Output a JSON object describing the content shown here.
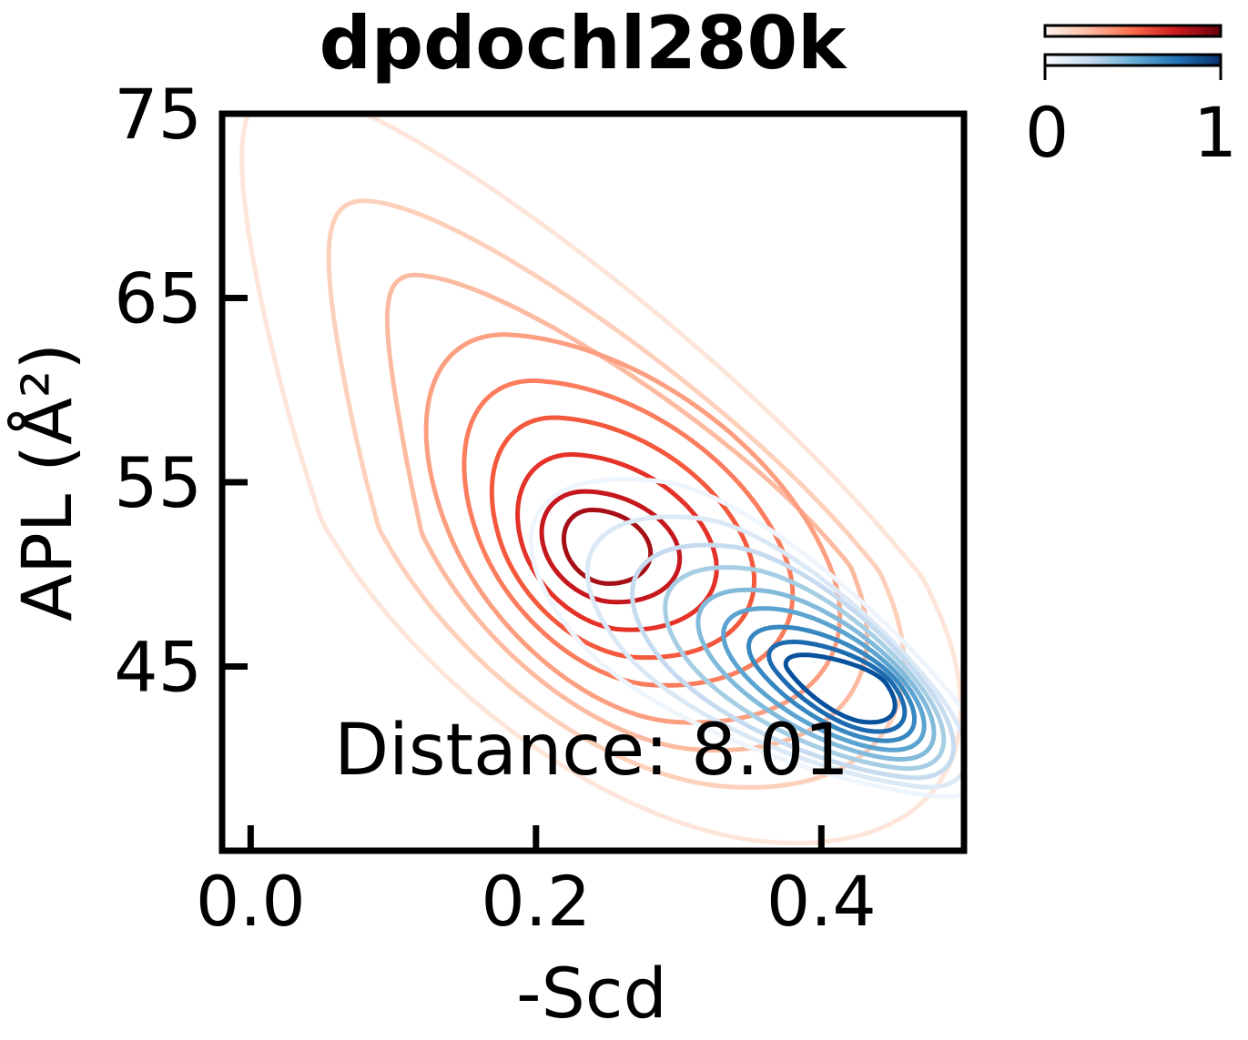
{
  "chart_data": {
    "type": "contour",
    "title": "dpdochl280k",
    "xlabel": "-Scd",
    "ylabel": "APL (Å²)",
    "xlim": [
      -0.02,
      0.5
    ],
    "ylim": [
      35,
      75
    ],
    "xticks": [
      "0.0",
      "0.2",
      "0.4"
    ],
    "xtick_values": [
      0.0,
      0.2,
      0.4
    ],
    "yticks": [
      "75",
      "65",
      "55",
      "45"
    ],
    "ytick_values": [
      75,
      65,
      55,
      45
    ],
    "annotation": "Distance: 8.01",
    "grid": false,
    "series": [
      {
        "colormap": "Reds",
        "center": {
          "x": 0.245,
          "y": 51.5
        },
        "levels": [
          {
            "dx_minus": 0.195,
            "dx_plus": 0.225,
            "dy_up": 24.5,
            "dy_down": 16.0,
            "tilt": 0.6,
            "color": "#fee5d9",
            "shape": "tear"
          },
          {
            "dx_minus": 0.155,
            "dx_plus": 0.195,
            "dy_up": 18.5,
            "dy_down": 13.0,
            "tilt": 0.55,
            "color": "#fdd0bb",
            "shape": "tear"
          },
          {
            "dx_minus": 0.125,
            "dx_plus": 0.175,
            "dy_up": 14.5,
            "dy_down": 11.0,
            "tilt": 0.5,
            "color": "#fcbba1",
            "shape": "tear"
          },
          {
            "dx_minus": 0.105,
            "dx_plus": 0.16,
            "dy_up": 11.5,
            "dy_down": 9.5,
            "tilt": 0.45,
            "color": "#fc9f81",
            "shape": "ellipse"
          },
          {
            "dx_minus": 0.085,
            "dx_plus": 0.13,
            "dy_up": 9.0,
            "dy_down": 7.5,
            "tilt": 0.4,
            "color": "#fb7d5d",
            "shape": "ellipse"
          },
          {
            "dx_minus": 0.07,
            "dx_plus": 0.105,
            "dy_up": 7.0,
            "dy_down": 6.0,
            "tilt": 0.35,
            "color": "#f4593d",
            "shape": "ellipse"
          },
          {
            "dx_minus": 0.055,
            "dx_plus": 0.08,
            "dy_up": 5.0,
            "dy_down": 4.5,
            "tilt": 0.3,
            "color": "#e53228",
            "shape": "ellipse"
          },
          {
            "dx_minus": 0.04,
            "dx_plus": 0.055,
            "dy_up": 3.0,
            "dy_down": 3.0,
            "tilt": 0.25,
            "color": "#c5171c",
            "shape": "ellipse"
          },
          {
            "dx_minus": 0.025,
            "dx_plus": 0.035,
            "dy_up": 2.0,
            "dy_down": 2.0,
            "tilt": 0.2,
            "color": "#a50f15",
            "shape": "ellipse"
          }
        ]
      },
      {
        "colormap": "Blues",
        "center": {
          "x": 0.405,
          "y": 44.5
        },
        "levels": [
          {
            "dx_minus": 0.175,
            "dx_plus": 0.085,
            "dy_up": 10.5,
            "dy_down": 6.5,
            "tilt": 0.9,
            "color": "#eef5fc",
            "shape": "ellipse"
          },
          {
            "dx_minus": 0.145,
            "dx_plus": 0.075,
            "dy_up": 8.5,
            "dy_down": 6.0,
            "tilt": 0.85,
            "color": "#dbe9f6",
            "shape": "ellipse"
          },
          {
            "dx_minus": 0.12,
            "dx_plus": 0.07,
            "dy_up": 7.0,
            "dy_down": 5.5,
            "tilt": 0.8,
            "color": "#c6dbef",
            "shape": "ellipse"
          },
          {
            "dx_minus": 0.1,
            "dx_plus": 0.065,
            "dy_up": 5.8,
            "dy_down": 5.0,
            "tilt": 0.8,
            "color": "#a6cee4",
            "shape": "ellipse"
          },
          {
            "dx_minus": 0.08,
            "dx_plus": 0.06,
            "dy_up": 4.6,
            "dy_down": 4.5,
            "tilt": 0.8,
            "color": "#82badb",
            "shape": "ellipse"
          },
          {
            "dx_minus": 0.065,
            "dx_plus": 0.055,
            "dy_up": 3.6,
            "dy_down": 4.0,
            "tilt": 0.8,
            "color": "#5ba3d0",
            "shape": "ellipse"
          },
          {
            "dx_minus": 0.05,
            "dx_plus": 0.05,
            "dy_up": 2.6,
            "dy_down": 3.5,
            "tilt": 0.8,
            "color": "#3787c0",
            "shape": "ellipse"
          },
          {
            "dx_minus": 0.038,
            "dx_plus": 0.045,
            "dy_up": 1.8,
            "dy_down": 3.0,
            "tilt": 0.8,
            "color": "#1c6aaf",
            "shape": "ellipse"
          },
          {
            "dx_minus": 0.028,
            "dx_plus": 0.04,
            "dy_up": 1.1,
            "dy_down": 2.5,
            "tilt": 0.8,
            "color": "#08519c",
            "shape": "ellipse"
          }
        ]
      }
    ],
    "colorbars": [
      {
        "colormap": "Reds",
        "stops": [
          "#fff5f0",
          "#fcbba1",
          "#fb6a4a",
          "#cb181d",
          "#67000d"
        ]
      },
      {
        "colormap": "Blues",
        "stops": [
          "#f7fbff",
          "#c6dbef",
          "#6baed6",
          "#2171b5",
          "#08306b"
        ]
      }
    ],
    "colorbar_ticks": [
      "0",
      "1"
    ]
  }
}
